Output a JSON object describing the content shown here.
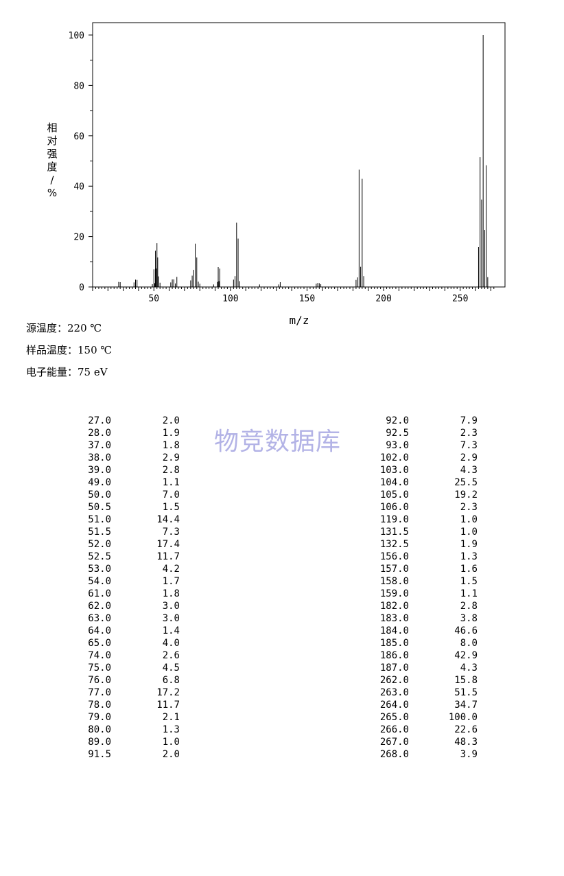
{
  "chart_data": {
    "type": "bar",
    "xlabel": "m/z",
    "ylabel": "相对强度/%",
    "xlim": [
      10,
      275
    ],
    "ylim": [
      0,
      105
    ],
    "x_ticks": [
      50,
      100,
      150,
      200,
      250
    ],
    "y_ticks": [
      0,
      20,
      40,
      60,
      80,
      100
    ],
    "x": [
      27.0,
      28.0,
      37.0,
      38.0,
      39.0,
      49.0,
      50.0,
      50.5,
      51.0,
      51.5,
      52.0,
      52.5,
      53.0,
      54.0,
      61.0,
      62.0,
      63.0,
      64.0,
      65.0,
      74.0,
      75.0,
      76.0,
      77.0,
      78.0,
      79.0,
      80.0,
      89.0,
      91.5,
      92.0,
      92.5,
      93.0,
      102.0,
      103.0,
      104.0,
      105.0,
      106.0,
      119.0,
      131.5,
      132.5,
      156.0,
      157.0,
      158.0,
      159.0,
      182.0,
      183.0,
      184.0,
      185.0,
      186.0,
      187.0,
      262.0,
      263.0,
      264.0,
      265.0,
      266.0,
      267.0,
      268.0
    ],
    "values": [
      2.0,
      1.9,
      1.8,
      2.9,
      2.8,
      1.1,
      7.0,
      1.5,
      14.4,
      7.3,
      17.4,
      11.7,
      4.2,
      1.7,
      1.8,
      3.0,
      3.0,
      1.4,
      4.0,
      2.6,
      4.5,
      6.8,
      17.2,
      11.7,
      2.1,
      1.3,
      1.0,
      2.0,
      7.9,
      2.3,
      7.3,
      2.9,
      4.3,
      25.5,
      19.2,
      2.3,
      1.0,
      1.0,
      1.9,
      1.3,
      1.6,
      1.5,
      1.1,
      2.8,
      3.8,
      46.6,
      8.0,
      42.9,
      4.3,
      15.8,
      51.5,
      34.7,
      100.0,
      22.6,
      48.3,
      3.9
    ]
  },
  "conditions": {
    "source_temp": "源温度：220 ℃",
    "sample_temp": "样品温度：150 ℃",
    "electron_energy": "电子能量：75 eV"
  },
  "peak_table": {
    "left": [
      {
        "mz": "27.0",
        "intensity": "2.0"
      },
      {
        "mz": "28.0",
        "intensity": "1.9"
      },
      {
        "mz": "37.0",
        "intensity": "1.8"
      },
      {
        "mz": "38.0",
        "intensity": "2.9"
      },
      {
        "mz": "39.0",
        "intensity": "2.8"
      },
      {
        "mz": "49.0",
        "intensity": "1.1"
      },
      {
        "mz": "50.0",
        "intensity": "7.0"
      },
      {
        "mz": "50.5",
        "intensity": "1.5"
      },
      {
        "mz": "51.0",
        "intensity": "14.4"
      },
      {
        "mz": "51.5",
        "intensity": "7.3"
      },
      {
        "mz": "52.0",
        "intensity": "17.4"
      },
      {
        "mz": "52.5",
        "intensity": "11.7"
      },
      {
        "mz": "53.0",
        "intensity": "4.2"
      },
      {
        "mz": "54.0",
        "intensity": "1.7"
      },
      {
        "mz": "61.0",
        "intensity": "1.8"
      },
      {
        "mz": "62.0",
        "intensity": "3.0"
      },
      {
        "mz": "63.0",
        "intensity": "3.0"
      },
      {
        "mz": "64.0",
        "intensity": "1.4"
      },
      {
        "mz": "65.0",
        "intensity": "4.0"
      },
      {
        "mz": "74.0",
        "intensity": "2.6"
      },
      {
        "mz": "75.0",
        "intensity": "4.5"
      },
      {
        "mz": "76.0",
        "intensity": "6.8"
      },
      {
        "mz": "77.0",
        "intensity": "17.2"
      },
      {
        "mz": "78.0",
        "intensity": "11.7"
      },
      {
        "mz": "79.0",
        "intensity": "2.1"
      },
      {
        "mz": "80.0",
        "intensity": "1.3"
      },
      {
        "mz": "89.0",
        "intensity": "1.0"
      },
      {
        "mz": "91.5",
        "intensity": "2.0"
      }
    ],
    "right": [
      {
        "mz": "92.0",
        "intensity": "7.9"
      },
      {
        "mz": "92.5",
        "intensity": "2.3"
      },
      {
        "mz": "93.0",
        "intensity": "7.3"
      },
      {
        "mz": "102.0",
        "intensity": "2.9"
      },
      {
        "mz": "103.0",
        "intensity": "4.3"
      },
      {
        "mz": "104.0",
        "intensity": "25.5"
      },
      {
        "mz": "105.0",
        "intensity": "19.2"
      },
      {
        "mz": "106.0",
        "intensity": "2.3"
      },
      {
        "mz": "119.0",
        "intensity": "1.0"
      },
      {
        "mz": "131.5",
        "intensity": "1.0"
      },
      {
        "mz": "132.5",
        "intensity": "1.9"
      },
      {
        "mz": "156.0",
        "intensity": "1.3"
      },
      {
        "mz": "157.0",
        "intensity": "1.6"
      },
      {
        "mz": "158.0",
        "intensity": "1.5"
      },
      {
        "mz": "159.0",
        "intensity": "1.1"
      },
      {
        "mz": "182.0",
        "intensity": "2.8"
      },
      {
        "mz": "183.0",
        "intensity": "3.8"
      },
      {
        "mz": "184.0",
        "intensity": "46.6"
      },
      {
        "mz": "185.0",
        "intensity": "8.0"
      },
      {
        "mz": "186.0",
        "intensity": "42.9"
      },
      {
        "mz": "187.0",
        "intensity": "4.3"
      },
      {
        "mz": "262.0",
        "intensity": "15.8"
      },
      {
        "mz": "263.0",
        "intensity": "51.5"
      },
      {
        "mz": "264.0",
        "intensity": "34.7"
      },
      {
        "mz": "265.0",
        "intensity": "100.0"
      },
      {
        "mz": "266.0",
        "intensity": "22.6"
      },
      {
        "mz": "267.0",
        "intensity": "48.3"
      },
      {
        "mz": "268.0",
        "intensity": "3.9"
      }
    ]
  },
  "watermark": "物竞数据库"
}
